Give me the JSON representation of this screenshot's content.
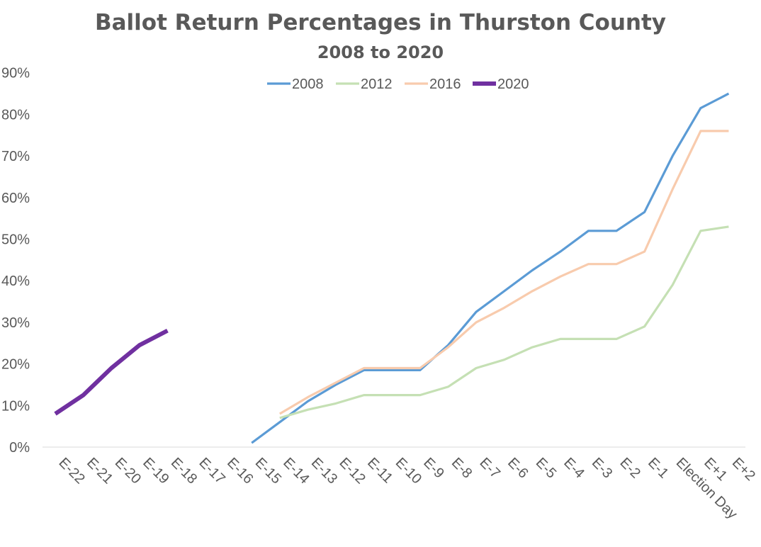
{
  "chart_data": {
    "type": "line",
    "title": "Ballot Return Percentages in Thurston County",
    "subtitle": "2008 to 2020",
    "categories": [
      "E-22",
      "E-21",
      "E-20",
      "E-19",
      "E-18",
      "E-17",
      "E-16",
      "E-15",
      "E-14",
      "E-13",
      "E-12",
      "E-11",
      "E-10",
      "E-9",
      "E-8",
      "E-7",
      "E-6",
      "E-5",
      "E-4",
      "E-3",
      "E-2",
      "E-1",
      "Election Day",
      "E+1",
      "E+2"
    ],
    "y_ticks": [
      "0%",
      "10%",
      "20%",
      "30%",
      "40%",
      "50%",
      "60%",
      "70%",
      "80%",
      "90%"
    ],
    "ylim": [
      0,
      90
    ],
    "legend_position": "top",
    "grid": false,
    "series": [
      {
        "name": "2008",
        "color": "#5B9BD5",
        "values": [
          null,
          null,
          null,
          null,
          null,
          null,
          null,
          1,
          6,
          11,
          15,
          18.5,
          18.5,
          18.5,
          24.5,
          32.5,
          37.5,
          42.5,
          47,
          52,
          52,
          56.5,
          70,
          81.5,
          85
        ]
      },
      {
        "name": "2012",
        "color": "#C5E0B4",
        "values": [
          null,
          null,
          null,
          null,
          null,
          null,
          null,
          null,
          7,
          9,
          10.5,
          12.5,
          12.5,
          12.5,
          14.5,
          19,
          21,
          24,
          26,
          26,
          26,
          29,
          39,
          52,
          53
        ]
      },
      {
        "name": "2016",
        "color": "#F8CBAD",
        "values": [
          null,
          null,
          null,
          null,
          null,
          null,
          null,
          null,
          8,
          12,
          15.5,
          19,
          19,
          19,
          24,
          30,
          33.5,
          37.5,
          41,
          44,
          44,
          47,
          62,
          76,
          76
        ]
      },
      {
        "name": "2020",
        "color": "#7030A0",
        "values": [
          8,
          12.5,
          19,
          24.5,
          28,
          null,
          null,
          null,
          null,
          null,
          null,
          null,
          null,
          null,
          null,
          null,
          null,
          null,
          null,
          null,
          null,
          null,
          null,
          null,
          null
        ]
      }
    ]
  }
}
